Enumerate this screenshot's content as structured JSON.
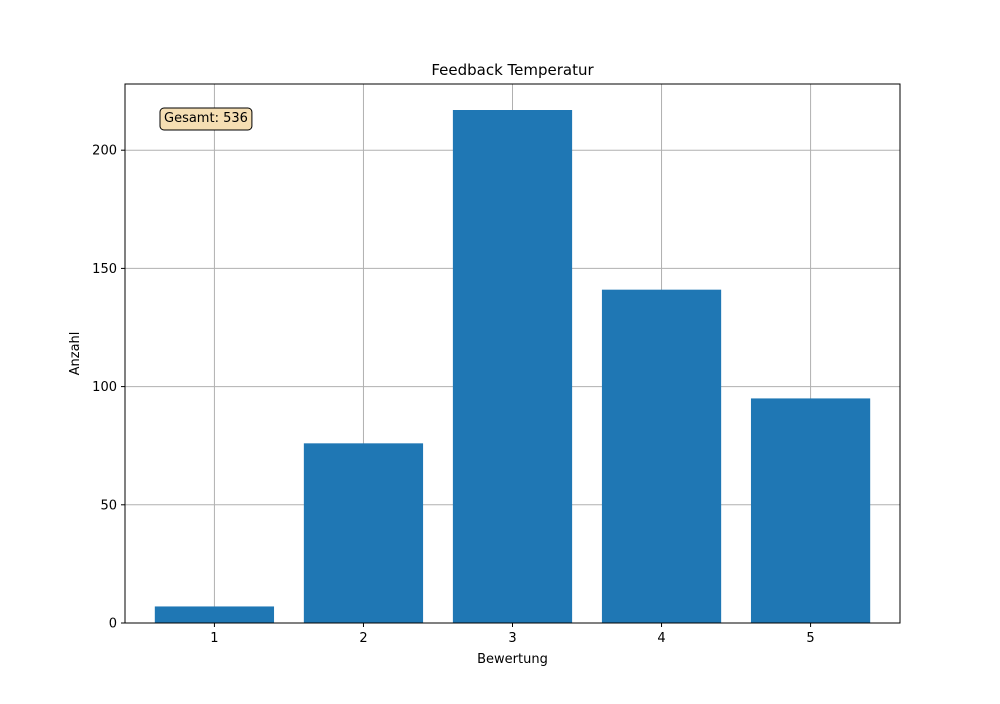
{
  "chart_data": {
    "type": "bar",
    "title": "Feedback Temperatur",
    "xlabel": "Bewertung",
    "ylabel": "Anzahl",
    "categories": [
      "1",
      "2",
      "3",
      "4",
      "5"
    ],
    "values": [
      7,
      76,
      217,
      141,
      95
    ],
    "ylim": [
      0,
      228
    ],
    "yticks": [
      0,
      50,
      100,
      150,
      200
    ],
    "ytick_labels": [
      "0",
      "50",
      "100",
      "150",
      "200"
    ],
    "grid": true,
    "annotation": {
      "text": "Gesamt: 536",
      "position": "top-left"
    },
    "colors": {
      "bar": "#1f77b4",
      "grid": "#b0b0b0",
      "annotation_fill": "#f5deb3",
      "annotation_edge": "#000000"
    }
  }
}
